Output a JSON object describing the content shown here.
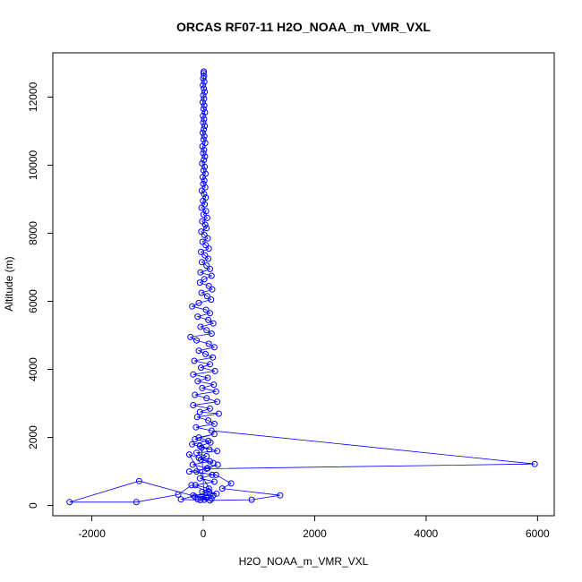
{
  "chart_data": {
    "type": "scatter",
    "title": "ORCAS RF07-11 H2O_NOAA_m_VMR_VXL",
    "xlabel": "H2O_NOAA_m_VMR_VXL",
    "ylabel": "Altitude (m)",
    "xlim": [
      -2700,
      6300
    ],
    "ylim": [
      -300,
      13300
    ],
    "xticks": [
      -2000,
      0,
      2000,
      4000,
      6000
    ],
    "yticks": [
      0,
      2000,
      4000,
      6000,
      8000,
      10000,
      12000
    ],
    "grid": false,
    "legend": "none",
    "color": "#0000ff",
    "marker": "open-circle",
    "connected": true,
    "series": [
      {
        "points": [
          [
            10,
            12750
          ],
          [
            5,
            12700
          ],
          [
            15,
            12620
          ],
          [
            0,
            12550
          ],
          [
            20,
            12450
          ],
          [
            -5,
            12350
          ],
          [
            10,
            12250
          ],
          [
            25,
            12150
          ],
          [
            0,
            12050
          ],
          [
            15,
            11950
          ],
          [
            -10,
            11850
          ],
          [
            20,
            11750
          ],
          [
            5,
            11650
          ],
          [
            30,
            11550
          ],
          [
            -5,
            11450
          ],
          [
            15,
            11350
          ],
          [
            0,
            11250
          ],
          [
            25,
            11150
          ],
          [
            10,
            11050
          ],
          [
            -10,
            10950
          ],
          [
            20,
            10850
          ],
          [
            5,
            10750
          ],
          [
            35,
            10650
          ],
          [
            -15,
            10550
          ],
          [
            15,
            10450
          ],
          [
            0,
            10350
          ],
          [
            30,
            10250
          ],
          [
            10,
            10150
          ],
          [
            -20,
            10050
          ],
          [
            25,
            9950
          ],
          [
            5,
            9850
          ],
          [
            40,
            9750
          ],
          [
            -10,
            9650
          ],
          [
            20,
            9550
          ],
          [
            0,
            9450
          ],
          [
            35,
            9350
          ],
          [
            -25,
            9250
          ],
          [
            15,
            9150
          ],
          [
            45,
            9050
          ],
          [
            -5,
            8950
          ],
          [
            25,
            8850
          ],
          [
            -30,
            8750
          ],
          [
            50,
            8650
          ],
          [
            5,
            8550
          ],
          [
            70,
            8450
          ],
          [
            -20,
            8350
          ],
          [
            35,
            8250
          ],
          [
            60,
            8150
          ],
          [
            -35,
            8050
          ],
          [
            20,
            7950
          ],
          [
            80,
            7850
          ],
          [
            -15,
            7750
          ],
          [
            45,
            7650
          ],
          [
            100,
            7550
          ],
          [
            -40,
            7450
          ],
          [
            30,
            7350
          ],
          [
            90,
            7250
          ],
          [
            -25,
            7150
          ],
          [
            60,
            7050
          ],
          [
            120,
            6950
          ],
          [
            -50,
            6850
          ],
          [
            150,
            6750
          ],
          [
            20,
            6650
          ],
          [
            -60,
            6550
          ],
          [
            100,
            6450
          ],
          [
            160,
            6350
          ],
          [
            -30,
            6250
          ],
          [
            70,
            6150
          ],
          [
            140,
            6050
          ],
          [
            -80,
            5950
          ],
          [
            -200,
            5850
          ],
          [
            50,
            5750
          ],
          [
            120,
            5650
          ],
          [
            -100,
            5550
          ],
          [
            90,
            5450
          ],
          [
            180,
            5350
          ],
          [
            -50,
            5250
          ],
          [
            60,
            5150
          ],
          [
            150,
            5050
          ],
          [
            -230,
            4950
          ],
          [
            -120,
            4850
          ],
          [
            100,
            4750
          ],
          [
            200,
            4650
          ],
          [
            -80,
            4550
          ],
          [
            40,
            4450
          ],
          [
            170,
            4350
          ],
          [
            -160,
            4250
          ],
          [
            120,
            4150
          ],
          [
            -40,
            4050
          ],
          [
            210,
            3950
          ],
          [
            -180,
            3850
          ],
          [
            80,
            3750
          ],
          [
            -100,
            3650
          ],
          [
            190,
            3550
          ],
          [
            -20,
            3450
          ],
          [
            230,
            3350
          ],
          [
            -150,
            3250
          ],
          [
            60,
            3150
          ],
          [
            250,
            3050
          ],
          [
            -180,
            2950
          ],
          [
            120,
            2850
          ],
          [
            -60,
            2750
          ],
          [
            280,
            2700
          ],
          [
            -110,
            2600
          ],
          [
            90,
            2500
          ],
          [
            200,
            2400
          ],
          [
            -130,
            2300
          ],
          [
            150,
            2200
          ],
          [
            5950,
            1220
          ],
          [
            60,
            1080
          ],
          [
            -250,
            1000
          ],
          [
            230,
            900
          ],
          [
            500,
            650
          ],
          [
            340,
            500
          ],
          [
            1380,
            300
          ],
          [
            870,
            170
          ],
          [
            120,
            150
          ],
          [
            -1150,
            720
          ],
          [
            -2400,
            100
          ],
          [
            -1200,
            100
          ],
          [
            -450,
            320
          ],
          [
            -210,
            600
          ],
          [
            110,
            400
          ],
          [
            -400,
            180
          ],
          [
            -50,
            160
          ],
          [
            60,
            220
          ],
          [
            -150,
            260
          ],
          [
            180,
            300
          ],
          [
            -250,
            1500
          ],
          [
            -80,
            1400
          ],
          [
            120,
            1300
          ],
          [
            -190,
            1200
          ],
          [
            80,
            1100
          ],
          [
            260,
            1200
          ],
          [
            -120,
            1000
          ],
          [
            160,
            900
          ],
          [
            -60,
            800
          ],
          [
            200,
            700
          ],
          [
            -140,
            600
          ],
          [
            100,
            500
          ],
          [
            -20,
            400
          ],
          [
            240,
            350
          ],
          [
            -180,
            300
          ],
          [
            50,
            250
          ],
          [
            150,
            200
          ],
          [
            -100,
            180
          ],
          [
            20,
            170
          ],
          [
            -30,
            1700
          ],
          [
            110,
            1650
          ],
          [
            -200,
            1800
          ],
          [
            90,
            1900
          ],
          [
            -80,
            2000
          ],
          [
            200,
            2100
          ],
          [
            -150,
            1950
          ],
          [
            130,
            1850
          ],
          [
            -60,
            1750
          ],
          [
            250,
            1600
          ],
          [
            -120,
            1550
          ],
          [
            60,
            1450
          ],
          [
            -40,
            1350
          ],
          [
            180,
            1250
          ]
        ]
      }
    ]
  }
}
